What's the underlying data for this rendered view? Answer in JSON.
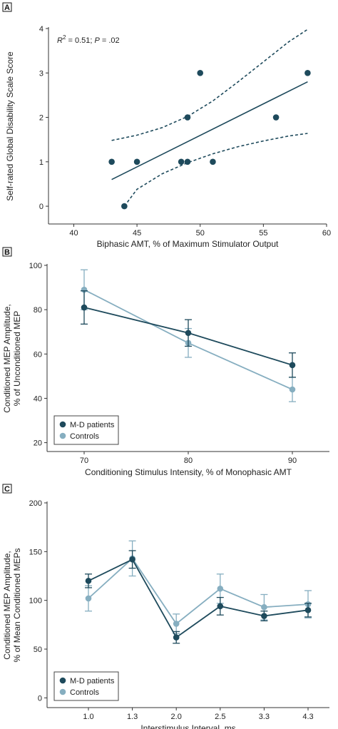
{
  "colors": {
    "dark": "#1e4a5c",
    "light": "#86aec0",
    "axis": "#333333"
  },
  "chart_data": [
    {
      "type": "scatter",
      "panel": "A",
      "xlabel": "Biphasic AMT, % of Maximum Stimulator Output",
      "ylabel": "Self-rated Global Disability Scale Score",
      "xlim": [
        38,
        60
      ],
      "ylim": [
        -0.4,
        4
      ],
      "xticks": [
        40,
        45,
        50,
        55,
        60
      ],
      "yticks": [
        0,
        1,
        2,
        3,
        4
      ],
      "annotation": {
        "r2_base": "R",
        "r2_exp": "2",
        "r2_rest": " = 0.51; ",
        "p_label": "P",
        "p_rest": " = .02"
      },
      "points": [
        {
          "x": 43,
          "y": 1
        },
        {
          "x": 44,
          "y": 0
        },
        {
          "x": 45,
          "y": 1
        },
        {
          "x": 48.5,
          "y": 1
        },
        {
          "x": 49,
          "y": 2
        },
        {
          "x": 49,
          "y": 1
        },
        {
          "x": 50,
          "y": 3
        },
        {
          "x": 51,
          "y": 1
        },
        {
          "x": 56,
          "y": 2
        },
        {
          "x": 58.5,
          "y": 3
        }
      ],
      "fit": {
        "x": [
          43,
          58.5
        ],
        "y": [
          0.6,
          2.8
        ]
      },
      "ci_upper": {
        "x": [
          43,
          45,
          47,
          49,
          51,
          53,
          55,
          57,
          58.5
        ],
        "y": [
          1.48,
          1.6,
          1.77,
          2.02,
          2.37,
          2.8,
          3.25,
          3.7,
          3.98
        ]
      },
      "ci_lower": {
        "x": [
          44,
          45,
          47,
          49,
          51,
          53,
          55,
          57,
          58.5
        ],
        "y": [
          0.0,
          0.38,
          0.73,
          0.98,
          1.18,
          1.34,
          1.47,
          1.58,
          1.64
        ]
      }
    },
    {
      "type": "line",
      "panel": "B",
      "xlabel": "Conditioning Stimulus Intensity, % of Monophasic AMT",
      "ylabel_lines": [
        "Conditioned MEP Amplitude,",
        "% of Unconditioned MEP"
      ],
      "categories": [
        "70",
        "80",
        "90"
      ],
      "ylim": [
        16,
        100
      ],
      "yticks": [
        20,
        40,
        60,
        80,
        100
      ],
      "legend": {
        "placement": "bottom-left"
      },
      "series": [
        {
          "name": "M-D patients",
          "values": [
            81,
            69.5,
            55
          ],
          "err": [
            7.5,
            6,
            5.5
          ]
        },
        {
          "name": "Controls",
          "values": [
            89,
            65,
            44
          ],
          "err": [
            9,
            6.5,
            5.5
          ]
        }
      ]
    },
    {
      "type": "line",
      "panel": "C",
      "xlabel": "Interstimulus Interval, ms",
      "ylabel_lines": [
        "Conditioned MEP Amplitude,",
        "% of Mean Conditioned MEPs"
      ],
      "categories": [
        "1.0",
        "1.3",
        "2.0",
        "2.5",
        "3.3",
        "4.3"
      ],
      "ylim": [
        -10,
        200
      ],
      "yticks": [
        0,
        50,
        100,
        150,
        200
      ],
      "legend": {
        "placement": "bottom-left"
      },
      "series": [
        {
          "name": "M-D patients",
          "values": [
            120,
            142,
            62,
            94,
            84,
            90
          ],
          "err": [
            7,
            9,
            6,
            9,
            5,
            7
          ]
        },
        {
          "name": "Controls",
          "values": [
            102,
            143,
            76,
            112,
            93,
            96
          ],
          "err": [
            13,
            18,
            10,
            15,
            13,
            14
          ]
        }
      ]
    }
  ]
}
